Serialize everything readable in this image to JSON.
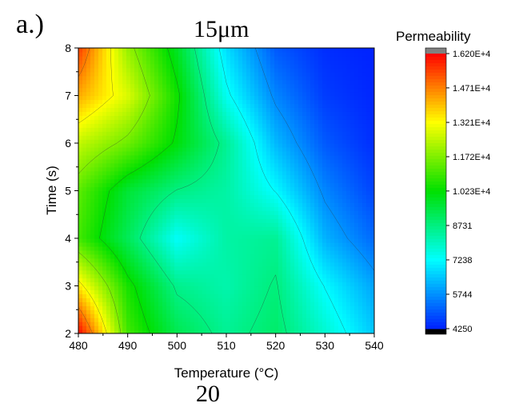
{
  "panel_label": "a.)",
  "bottom_fragment": "20",
  "colors": {
    "high": "#ff0000",
    "mid_high": "#ffff00",
    "mid": "#00e000",
    "mid_low": "#00ffff",
    "low": "#0022ff",
    "overflow": "#808080",
    "underflow": "#000000"
  },
  "chart_data": {
    "type": "heatmap",
    "title": "15μm",
    "xlabel": "Temperature (°C)",
    "ylabel": "Time (s)",
    "xlim": [
      480,
      540
    ],
    "ylim": [
      2,
      8
    ],
    "x_ticks": [
      "480",
      "490",
      "500",
      "510",
      "520",
      "530",
      "540"
    ],
    "y_ticks": [
      "2",
      "3",
      "4",
      "5",
      "6",
      "7",
      "8"
    ],
    "legend_title": "Permeability",
    "colorbar_labels": [
      "1.620E+4",
      "1.471E+4",
      "1.321E+4",
      "1.172E+4",
      "1.023E+4",
      "8731",
      "7238",
      "5744",
      "4250"
    ],
    "colorbar_values": [
      16200,
      14710,
      13210,
      11720,
      10230,
      8731,
      7238,
      5744,
      4250
    ],
    "x": [
      480,
      490,
      500,
      510,
      520,
      530,
      540
    ],
    "y": [
      2,
      3,
      4,
      5,
      6,
      7,
      8
    ],
    "z": [
      [
        16200,
        11000,
        9300,
        8500,
        9000,
        7800,
        6500
      ],
      [
        13500,
        10500,
        8600,
        8200,
        8800,
        7200,
        6000
      ],
      [
        11000,
        9200,
        7300,
        8300,
        8500,
        6200,
        5200
      ],
      [
        11300,
        9600,
        8700,
        8300,
        7200,
        5600,
        4700
      ],
      [
        12500,
        11500,
        10100,
        8500,
        6300,
        5000,
        4400
      ],
      [
        14200,
        12800,
        10400,
        7400,
        5600,
        4600,
        4300
      ],
      [
        15500,
        12000,
        9800,
        6800,
        5000,
        4400,
        4250
      ]
    ]
  }
}
